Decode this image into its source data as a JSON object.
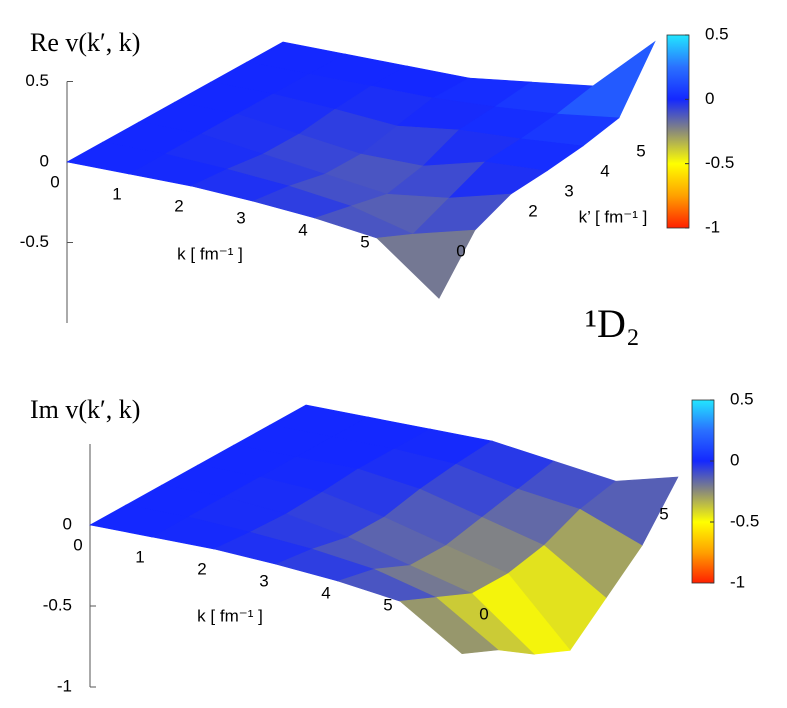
{
  "label": "¹D₂",
  "chart_data": [
    {
      "type": "surface",
      "title": "Re v(k′, k)",
      "xlabel": "k [ fm⁻¹ ]",
      "ylabel": "k’ [ fm⁻¹ ]",
      "x": [
        0,
        1,
        2,
        3,
        4,
        5,
        6
      ],
      "y": [
        0,
        1,
        2,
        3,
        4,
        5,
        6
      ],
      "z": [
        [
          0,
          0,
          0,
          -0.02,
          -0.05,
          -0.1,
          -0.4
        ],
        [
          0,
          0,
          -0.02,
          -0.05,
          -0.1,
          -0.2,
          -0.1
        ],
        [
          0,
          0,
          -0.05,
          -0.1,
          -0.15,
          -0.1,
          0
        ],
        [
          0,
          0,
          -0.05,
          -0.1,
          -0.1,
          0,
          0.02
        ],
        [
          0,
          0,
          -0.02,
          -0.05,
          0,
          0.02,
          0.05
        ],
        [
          0,
          0,
          0,
          0,
          0.02,
          0.05,
          0.1
        ],
        [
          0,
          0,
          0,
          0,
          0.05,
          0.1,
          0.45
        ]
      ],
      "xlim": [
        0,
        6
      ],
      "ylim": [
        0,
        6
      ],
      "zlim": [
        -1,
        0.5
      ],
      "xticks": [
        0,
        1,
        2,
        3,
        4,
        5
      ],
      "yticks": [
        0,
        2,
        3,
        4,
        5
      ],
      "zticks": [
        -0.5,
        0,
        0.5
      ],
      "clim": [
        -1,
        0.5
      ],
      "cticks": [
        -1,
        -0.5,
        0,
        0.5
      ],
      "colormap": [
        "#ff2000",
        "#ffa000",
        "#ffff00",
        "#8c8c78",
        "#1428ff",
        "#2a70ff",
        "#22e6ff"
      ]
    },
    {
      "type": "surface",
      "title": "Im v(k′, k)",
      "xlabel": "k [ fm⁻¹ ]",
      "x": [
        0,
        1,
        2,
        3,
        4,
        5,
        6
      ],
      "y": [
        0,
        1,
        2,
        3,
        4,
        5,
        6
      ],
      "z": [
        [
          0,
          0,
          0,
          -0.02,
          -0.05,
          -0.1,
          -0.35
        ],
        [
          0,
          0,
          -0.02,
          -0.05,
          -0.1,
          -0.2,
          -0.45
        ],
        [
          0,
          0,
          -0.03,
          -0.1,
          -0.2,
          -0.3,
          -0.6
        ],
        [
          0,
          0,
          -0.02,
          -0.1,
          -0.2,
          -0.3,
          -0.7
        ],
        [
          0,
          0,
          0,
          -0.05,
          -0.15,
          -0.25,
          -0.5
        ],
        [
          0,
          0,
          0,
          -0.02,
          -0.1,
          -0.15,
          -0.3
        ],
        [
          0,
          0,
          0,
          0,
          -0.05,
          -0.1,
          0
        ]
      ],
      "xlim": [
        0,
        6
      ],
      "ylim": [
        0,
        6
      ],
      "zlim": [
        -1,
        0.5
      ],
      "xticks": [
        0,
        1,
        2,
        3,
        4,
        5
      ],
      "yticks": [
        0,
        5
      ],
      "zticks": [
        -1,
        -0.5,
        0
      ],
      "clim": [
        -1,
        0.5
      ],
      "cticks": [
        -1,
        -0.5,
        0,
        0.5
      ],
      "colormap": [
        "#ff2000",
        "#ffa000",
        "#ffff00",
        "#8c8c78",
        "#1428ff",
        "#2a70ff",
        "#22e6ff"
      ]
    }
  ]
}
